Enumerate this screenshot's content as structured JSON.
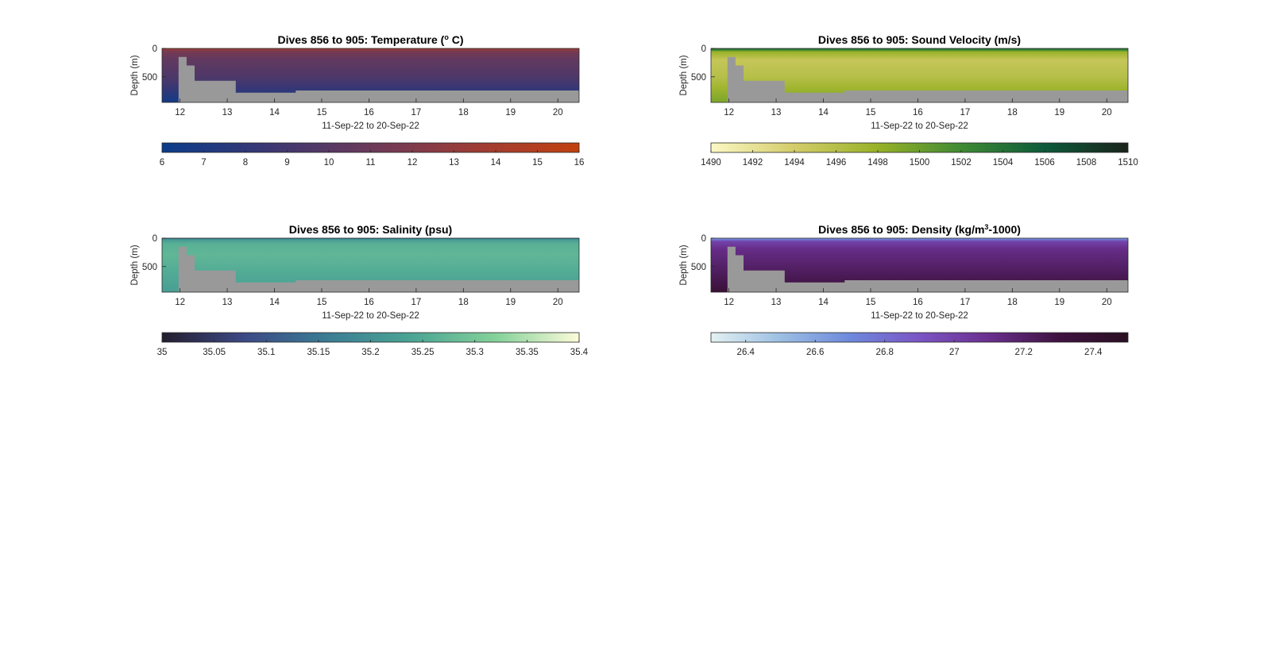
{
  "figure": {
    "panel_titles": [
      {
        "main": "Dives 856 to 905: Temperature (",
        "sup": "o",
        "tail": " C)"
      },
      {
        "main": "Dives 856 to 905: Sound Velocity (m/s)",
        "sup": "",
        "tail": ""
      },
      {
        "main": "Dives 856 to 905: Salinity (psu)",
        "sup": "",
        "tail": ""
      },
      {
        "main": "Dives 856 to 905: Density (kg/m",
        "sup": "3",
        "tail": "-1000)"
      }
    ]
  },
  "colors": {
    "bathymetry": "#999999",
    "axis": "#262626",
    "temperature_scale": [
      "#0b3c8a",
      "#3a3773",
      "#6b3a5a",
      "#9d3c36",
      "#c2410f"
    ],
    "sound_velocity_scale": [
      "#fbf8c4",
      "#d4cc6a",
      "#98b227",
      "#3f8a34",
      "#0d5a3a",
      "#1b231b"
    ],
    "salinity_scale": [
      "#241e2f",
      "#3c4a86",
      "#3b7d94",
      "#4ba594",
      "#84d19a",
      "#fdfbd9"
    ],
    "density_scale": [
      "#e3f1f2",
      "#9cbfe3",
      "#6d89dc",
      "#7b55c4",
      "#6a2f8e",
      "#3e1240",
      "#2a0f22"
    ]
  },
  "chart_data": [
    {
      "type": "heatmap",
      "variable": "temperature",
      "title": "Dives 856 to 905: Temperature (o C)",
      "xlabel": "11-Sep-22 to 20-Sep-22",
      "ylabel": "Depth (m)",
      "x_ticks": [
        12,
        13,
        14,
        15,
        16,
        17,
        18,
        19,
        20
      ],
      "xlim": [
        11.62,
        20.45
      ],
      "y_ticks": [
        0,
        500
      ],
      "ylim": [
        950,
        0
      ],
      "y_reversed": true,
      "colorbar": {
        "ticks": [
          6,
          7,
          8,
          9,
          10,
          11,
          12,
          13,
          14,
          15,
          16
        ],
        "range": [
          6,
          16
        ]
      },
      "profile": {
        "depth": [
          0,
          60,
          200,
          500,
          700,
          900
        ],
        "value": [
          13.5,
          11.5,
          10.5,
          9.5,
          8.3,
          6.8
        ]
      },
      "seafloor": {
        "x": [
          11.62,
          11.97,
          11.97,
          12.14,
          12.14,
          12.31,
          12.31,
          13.18,
          13.18,
          14.45,
          14.45,
          20.45
        ],
        "depth": [
          950,
          950,
          150,
          150,
          300,
          300,
          570,
          570,
          780,
          780,
          740,
          740
        ]
      }
    },
    {
      "type": "heatmap",
      "variable": "sound_velocity",
      "title": "Dives 856 to 905: Sound Velocity (m/s)",
      "xlabel": "11-Sep-22 to 20-Sep-22",
      "ylabel": "Depth (m)",
      "x_ticks": [
        12,
        13,
        14,
        15,
        16,
        17,
        18,
        19,
        20
      ],
      "xlim": [
        11.62,
        20.45
      ],
      "y_ticks": [
        0,
        500
      ],
      "ylim": [
        950,
        0
      ],
      "y_reversed": true,
      "colorbar": {
        "ticks": [
          1490,
          1492,
          1494,
          1496,
          1498,
          1500,
          1502,
          1504,
          1506,
          1508,
          1510
        ],
        "range": [
          1490,
          1510
        ]
      },
      "profile": {
        "depth": [
          0,
          25,
          60,
          200,
          500,
          700,
          900
        ],
        "value": [
          1504,
          1503,
          1498,
          1495,
          1496,
          1497.5,
          1499
        ]
      },
      "seafloor": {
        "x": [
          11.62,
          11.97,
          11.97,
          12.14,
          12.14,
          12.31,
          12.31,
          13.18,
          13.18,
          14.45,
          14.45,
          20.45
        ],
        "depth": [
          950,
          950,
          150,
          150,
          300,
          300,
          570,
          570,
          780,
          780,
          740,
          740
        ]
      }
    },
    {
      "type": "heatmap",
      "variable": "salinity",
      "title": "Dives 856 to 905: Salinity (psu)",
      "xlabel": "11-Sep-22 to 20-Sep-22",
      "ylabel": "Depth (m)",
      "x_ticks": [
        12,
        13,
        14,
        15,
        16,
        17,
        18,
        19,
        20
      ],
      "xlim": [
        11.62,
        20.45
      ],
      "y_ticks": [
        0,
        500
      ],
      "ylim": [
        950,
        0
      ],
      "y_reversed": true,
      "colorbar": {
        "ticks": [
          35,
          35.05,
          35.1,
          35.15,
          35.2,
          35.25,
          35.3,
          35.35,
          35.4
        ],
        "range": [
          35,
          35.4
        ]
      },
      "profile": {
        "depth": [
          0,
          30,
          100,
          300,
          600,
          900
        ],
        "value": [
          35.15,
          35.22,
          35.26,
          35.27,
          35.25,
          35.23
        ]
      },
      "seafloor": {
        "x": [
          11.62,
          11.97,
          11.97,
          12.14,
          12.14,
          12.31,
          12.31,
          13.18,
          13.18,
          14.45,
          14.45,
          20.45
        ],
        "depth": [
          950,
          950,
          150,
          150,
          300,
          300,
          570,
          570,
          780,
          780,
          740,
          740
        ]
      }
    },
    {
      "type": "heatmap",
      "variable": "density",
      "title": "Dives 856 to 905: Density (kg/m3-1000)",
      "xlabel": "11-Sep-22 to 20-Sep-22",
      "ylabel": "Depth (m)",
      "x_ticks": [
        12,
        13,
        14,
        15,
        16,
        17,
        18,
        19,
        20
      ],
      "xlim": [
        11.62,
        20.45
      ],
      "y_ticks": [
        0,
        500
      ],
      "ylim": [
        950,
        0
      ],
      "y_reversed": true,
      "colorbar": {
        "ticks": [
          26.4,
          26.6,
          26.8,
          27,
          27.2,
          27.4
        ],
        "range": [
          26.3,
          27.5
        ]
      },
      "profile": {
        "depth": [
          0,
          20,
          60,
          200,
          500,
          800,
          950
        ],
        "value": [
          26.55,
          26.75,
          27.0,
          27.12,
          27.2,
          27.28,
          27.35
        ]
      },
      "seafloor": {
        "x": [
          11.62,
          11.97,
          11.97,
          12.14,
          12.14,
          12.31,
          12.31,
          13.18,
          13.18,
          14.45,
          14.45,
          20.45
        ],
        "depth": [
          950,
          950,
          150,
          150,
          300,
          300,
          570,
          570,
          780,
          780,
          740,
          740
        ]
      }
    }
  ]
}
